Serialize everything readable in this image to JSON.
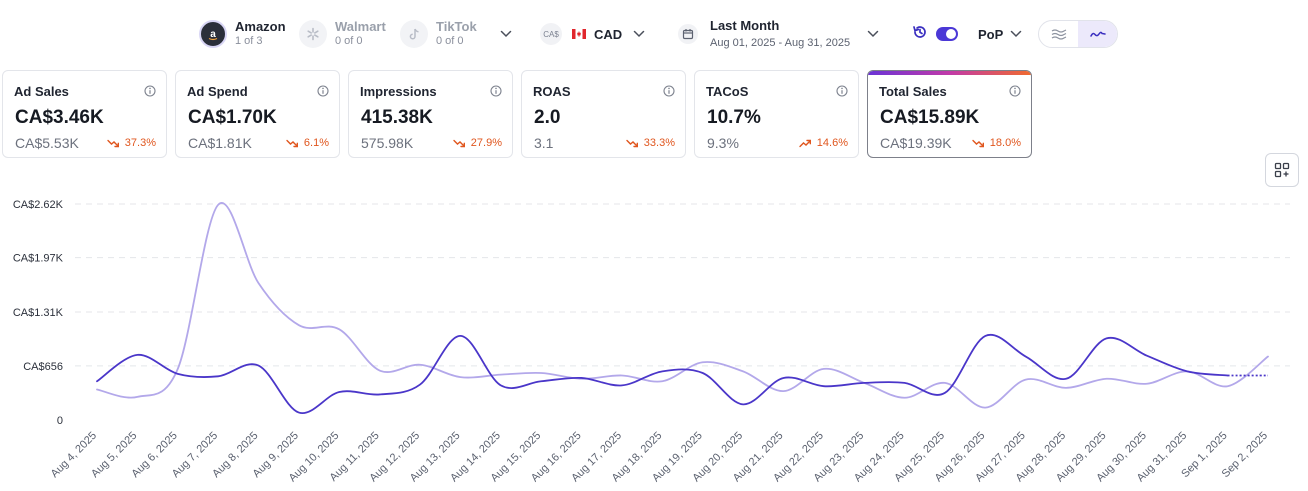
{
  "platforms": [
    {
      "name": "Amazon",
      "sub": "1 of 3",
      "icon": "amazon-icon",
      "active": true
    },
    {
      "name": "Walmart",
      "sub": "0 of 0",
      "icon": "walmart-icon",
      "active": false
    },
    {
      "name": "TikTok",
      "sub": "0 of 0",
      "icon": "tiktok-icon",
      "active": false
    }
  ],
  "currency": {
    "symbol": "CA$",
    "code": "CAD",
    "icon": "canada-flag-icon"
  },
  "date_range": {
    "title": "Last Month",
    "range": "Aug 01, 2025 - Aug 31, 2025"
  },
  "compare": {
    "enabled": true,
    "mode": "PoP"
  },
  "view_mode": {
    "options": [
      "area-chart-icon",
      "line-chart-icon"
    ],
    "selected": "line-chart-icon"
  },
  "metrics": [
    {
      "name": "Ad Sales",
      "value": "CA$3.46K",
      "previous": "CA$5.53K",
      "delta": "37.3%",
      "direction": "down",
      "selected": false
    },
    {
      "name": "Ad Spend",
      "value": "CA$1.70K",
      "previous": "CA$1.81K",
      "delta": "6.1%",
      "direction": "down",
      "selected": false
    },
    {
      "name": "Impressions",
      "value": "415.38K",
      "previous": "575.98K",
      "delta": "27.9%",
      "direction": "down",
      "selected": false
    },
    {
      "name": "ROAS",
      "value": "2.0",
      "previous": "3.1",
      "delta": "33.3%",
      "direction": "down",
      "selected": false
    },
    {
      "name": "TACoS",
      "value": "10.7%",
      "previous": "9.3%",
      "delta": "14.6%",
      "direction": "up",
      "selected": false
    },
    {
      "name": "Total Sales",
      "value": "CA$15.89K",
      "previous": "CA$19.39K",
      "delta": "18.0%",
      "direction": "down",
      "selected": true
    }
  ],
  "colors": {
    "accent": "#4b38d6",
    "current_series": "#4a36c9",
    "previous_series": "#b3a8ea",
    "negative": "#e0561e",
    "grid": "#e4e6ea"
  },
  "chart_data": {
    "type": "line",
    "x": [
      "Aug 4, 2025",
      "Aug 5, 2025",
      "Aug 6, 2025",
      "Aug 7, 2025",
      "Aug 8, 2025",
      "Aug 9, 2025",
      "Aug 10, 2025",
      "Aug 11, 2025",
      "Aug 12, 2025",
      "Aug 13, 2025",
      "Aug 14, 2025",
      "Aug 15, 2025",
      "Aug 16, 2025",
      "Aug 17, 2025",
      "Aug 18, 2025",
      "Aug 19, 2025",
      "Aug 20, 2025",
      "Aug 21, 2025",
      "Aug 22, 2025",
      "Aug 23, 2025",
      "Aug 24, 2025",
      "Aug 25, 2025",
      "Aug 26, 2025",
      "Aug 27, 2025",
      "Aug 28, 2025",
      "Aug 29, 2025",
      "Aug 30, 2025",
      "Aug 31, 2025",
      "Sep 1, 2025",
      "Sep 2, 2025"
    ],
    "series": [
      {
        "values": [
          470,
          790,
          560,
          530,
          660,
          90,
          340,
          310,
          430,
          1020,
          420,
          470,
          510,
          420,
          590,
          570,
          190,
          510,
          410,
          450,
          450,
          330,
          1020,
          770,
          500,
          990,
          780,
          590,
          540,
          540
        ],
        "dashed_from_index": 28
      },
      {
        "values": [
          370,
          280,
          620,
          2610,
          1660,
          1150,
          1100,
          600,
          670,
          520,
          550,
          570,
          500,
          540,
          470,
          700,
          590,
          350,
          620,
          450,
          270,
          450,
          150,
          490,
          390,
          500,
          440,
          590,
          410,
          770
        ]
      }
    ],
    "y_ticks": [
      "0",
      "CA$656",
      "CA$1.31K",
      "CA$1.97K",
      "CA$2.62K"
    ],
    "y_tick_values": [
      0,
      656,
      1310,
      1970,
      2620
    ],
    "ylim": [
      0,
      2620
    ],
    "grid": true,
    "legend": "none"
  }
}
